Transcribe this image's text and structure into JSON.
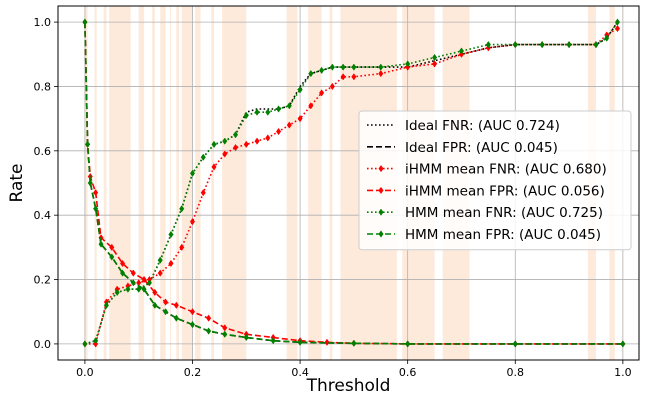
{
  "chart_data": {
    "type": "line",
    "title": "",
    "xlabel": "Threshold",
    "ylabel": "Rate",
    "xlim": [
      -0.05,
      1.03
    ],
    "ylim": [
      -0.05,
      1.05
    ],
    "xticks": [
      0.0,
      0.2,
      0.4,
      0.6,
      0.8,
      1.0
    ],
    "xtick_labels": [
      "0.0",
      "0.2",
      "0.4",
      "0.6",
      "0.8",
      "1.0"
    ],
    "yticks": [
      0.0,
      0.2,
      0.4,
      0.6,
      0.8,
      1.0
    ],
    "ytick_labels": [
      "0.0",
      "0.2",
      "0.4",
      "0.6",
      "0.8",
      "1.0"
    ],
    "grid": true,
    "legend_position": "center-right",
    "background_band_color": "#fde3cf",
    "background_bands": [
      [
        0.0,
        0.005
      ],
      [
        0.018,
        0.022
      ],
      [
        0.035,
        0.04
      ],
      [
        0.045,
        0.085
      ],
      [
        0.1,
        0.11
      ],
      [
        0.125,
        0.13
      ],
      [
        0.14,
        0.15
      ],
      [
        0.158,
        0.16
      ],
      [
        0.17,
        0.175
      ],
      [
        0.18,
        0.2
      ],
      [
        0.205,
        0.215
      ],
      [
        0.235,
        0.24
      ],
      [
        0.255,
        0.3
      ],
      [
        0.375,
        0.395
      ],
      [
        0.415,
        0.44
      ],
      [
        0.455,
        0.46
      ],
      [
        0.475,
        0.58
      ],
      [
        0.59,
        0.65
      ],
      [
        0.665,
        0.715
      ],
      [
        0.935,
        0.95
      ],
      [
        0.975,
        0.985
      ]
    ],
    "series": [
      {
        "name": "Ideal FNR: (AUC 0.724)",
        "color": "#000000",
        "style": "dotted",
        "marker": "none",
        "x": [
          0.0,
          0.02,
          0.04,
          0.06,
          0.08,
          0.1,
          0.12,
          0.14,
          0.16,
          0.18,
          0.2,
          0.22,
          0.24,
          0.26,
          0.28,
          0.3,
          0.32,
          0.34,
          0.36,
          0.38,
          0.4,
          0.42,
          0.44,
          0.46,
          0.48,
          0.5,
          0.55,
          0.6,
          0.65,
          0.7,
          0.75,
          0.8,
          0.85,
          0.9,
          0.95,
          0.97,
          0.99
        ],
        "y": [
          0.0,
          0.01,
          0.12,
          0.16,
          0.17,
          0.17,
          0.19,
          0.26,
          0.34,
          0.42,
          0.53,
          0.58,
          0.62,
          0.63,
          0.65,
          0.72,
          0.73,
          0.73,
          0.73,
          0.74,
          0.8,
          0.84,
          0.85,
          0.86,
          0.86,
          0.86,
          0.86,
          0.86,
          0.88,
          0.9,
          0.92,
          0.93,
          0.93,
          0.93,
          0.93,
          0.95,
          1.0
        ]
      },
      {
        "name": "Ideal FPR: (AUC 0.045)",
        "color": "#000000",
        "style": "dashed",
        "marker": "none",
        "x": [
          0.0,
          0.005,
          0.01,
          0.02,
          0.03,
          0.05,
          0.07,
          0.09,
          0.11,
          0.13,
          0.15,
          0.17,
          0.2,
          0.23,
          0.26,
          0.3,
          0.35,
          0.4,
          0.5,
          0.6,
          0.8,
          1.0
        ],
        "y": [
          1.0,
          0.62,
          0.5,
          0.42,
          0.31,
          0.27,
          0.22,
          0.19,
          0.17,
          0.12,
          0.1,
          0.08,
          0.06,
          0.04,
          0.03,
          0.02,
          0.01,
          0.005,
          0.002,
          0.0,
          0.0,
          0.0
        ]
      },
      {
        "name": "iHMM mean FNR: (AUC 0.680)",
        "color": "#ff0000",
        "style": "dotted",
        "marker": "diamond",
        "x": [
          0.0,
          0.02,
          0.04,
          0.06,
          0.08,
          0.1,
          0.12,
          0.14,
          0.16,
          0.18,
          0.2,
          0.22,
          0.24,
          0.26,
          0.28,
          0.3,
          0.32,
          0.34,
          0.36,
          0.38,
          0.4,
          0.42,
          0.44,
          0.46,
          0.48,
          0.5,
          0.55,
          0.6,
          0.65,
          0.7,
          0.75,
          0.8,
          0.85,
          0.9,
          0.95,
          0.97,
          0.99
        ],
        "y": [
          0.0,
          0.0,
          0.13,
          0.17,
          0.18,
          0.19,
          0.2,
          0.22,
          0.25,
          0.3,
          0.38,
          0.47,
          0.55,
          0.59,
          0.61,
          0.62,
          0.63,
          0.64,
          0.66,
          0.68,
          0.7,
          0.74,
          0.78,
          0.8,
          0.83,
          0.83,
          0.84,
          0.86,
          0.87,
          0.9,
          0.92,
          0.93,
          0.93,
          0.93,
          0.93,
          0.96,
          0.98
        ]
      },
      {
        "name": "iHMM mean FPR: (AUC 0.056)",
        "color": "#ff0000",
        "style": "dashed",
        "marker": "diamond",
        "x": [
          0.0,
          0.005,
          0.01,
          0.02,
          0.03,
          0.05,
          0.07,
          0.09,
          0.11,
          0.13,
          0.15,
          0.17,
          0.2,
          0.23,
          0.26,
          0.3,
          0.35,
          0.4,
          0.45,
          0.5,
          0.6,
          0.8,
          1.0
        ],
        "y": [
          1.0,
          0.62,
          0.52,
          0.47,
          0.33,
          0.3,
          0.25,
          0.22,
          0.2,
          0.16,
          0.13,
          0.12,
          0.1,
          0.08,
          0.05,
          0.03,
          0.02,
          0.01,
          0.005,
          0.002,
          0.0,
          0.0,
          0.0
        ]
      },
      {
        "name": "HMM mean FNR: (AUC 0.725)",
        "color": "#008000",
        "style": "dotted",
        "marker": "diamond",
        "x": [
          0.0,
          0.02,
          0.04,
          0.06,
          0.08,
          0.1,
          0.12,
          0.14,
          0.16,
          0.18,
          0.2,
          0.22,
          0.24,
          0.26,
          0.28,
          0.3,
          0.32,
          0.34,
          0.36,
          0.38,
          0.4,
          0.42,
          0.44,
          0.46,
          0.48,
          0.5,
          0.55,
          0.6,
          0.65,
          0.7,
          0.75,
          0.8,
          0.85,
          0.9,
          0.95,
          0.97,
          0.99
        ],
        "y": [
          0.0,
          0.01,
          0.12,
          0.16,
          0.17,
          0.17,
          0.19,
          0.26,
          0.34,
          0.42,
          0.53,
          0.58,
          0.62,
          0.63,
          0.65,
          0.71,
          0.72,
          0.72,
          0.73,
          0.74,
          0.79,
          0.84,
          0.85,
          0.86,
          0.86,
          0.86,
          0.86,
          0.87,
          0.89,
          0.91,
          0.93,
          0.93,
          0.93,
          0.93,
          0.93,
          0.95,
          1.0
        ]
      },
      {
        "name": "HMM mean FPR: (AUC 0.045)",
        "color": "#008000",
        "style": "dashed",
        "marker": "diamond",
        "x": [
          0.0,
          0.005,
          0.01,
          0.02,
          0.03,
          0.05,
          0.07,
          0.09,
          0.11,
          0.13,
          0.15,
          0.17,
          0.2,
          0.23,
          0.26,
          0.3,
          0.35,
          0.4,
          0.5,
          0.6,
          0.8,
          1.0
        ],
        "y": [
          1.0,
          0.62,
          0.5,
          0.42,
          0.31,
          0.27,
          0.22,
          0.19,
          0.17,
          0.12,
          0.1,
          0.08,
          0.06,
          0.04,
          0.03,
          0.02,
          0.01,
          0.005,
          0.002,
          0.0,
          0.0,
          0.0
        ]
      }
    ]
  }
}
